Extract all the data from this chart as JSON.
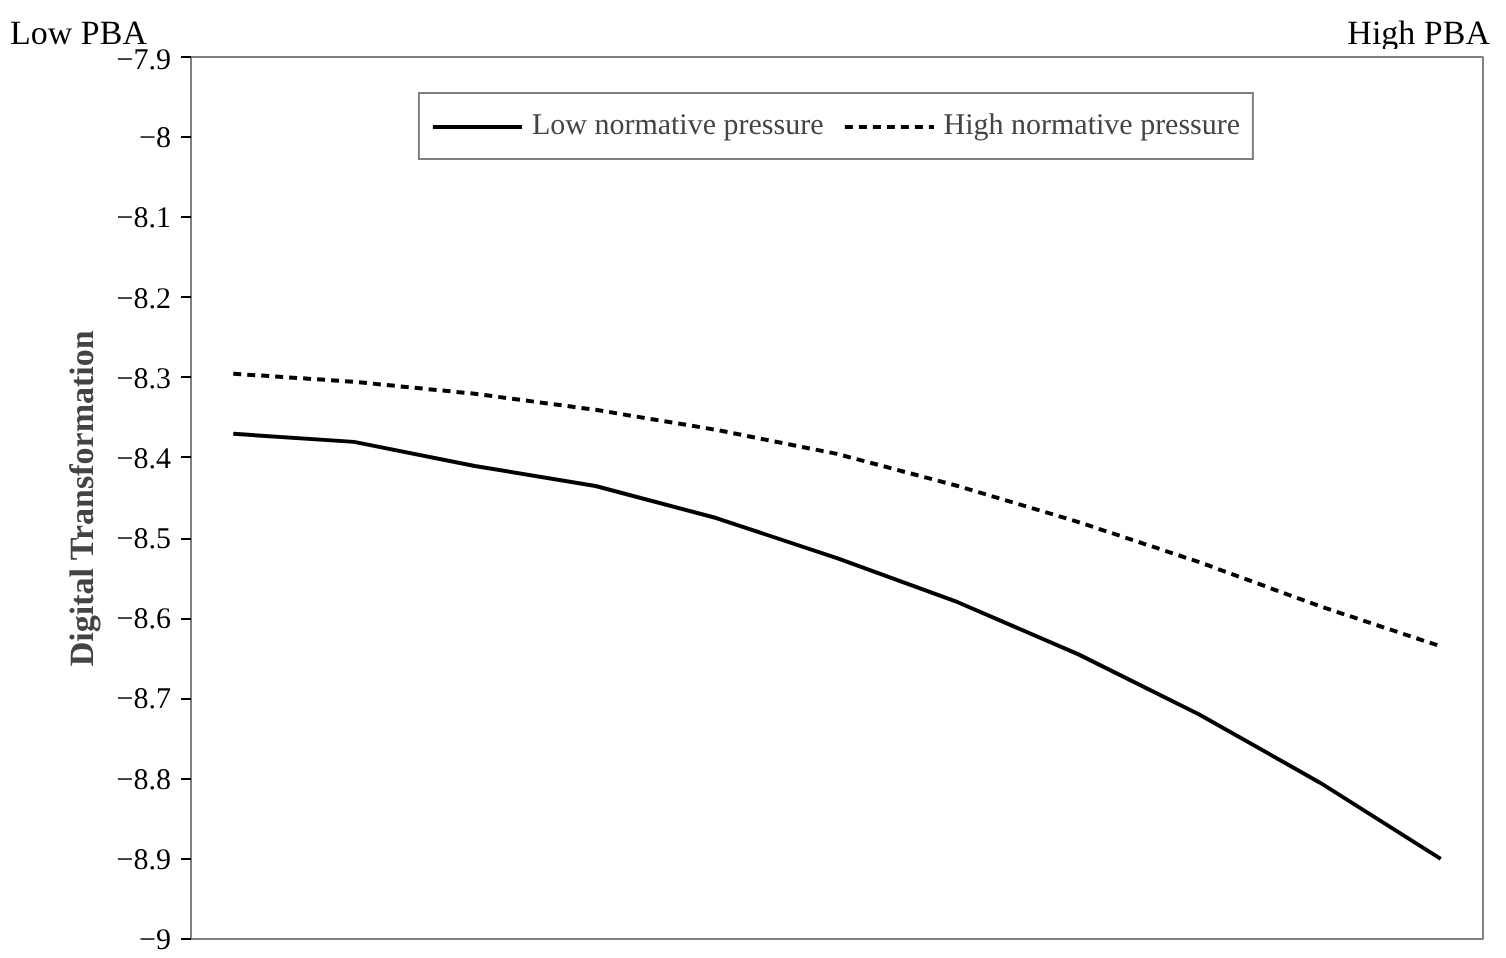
{
  "chart_data": {
    "type": "line",
    "ylabel": "Digital Transformation",
    "annotations": [
      "Low PBA",
      "High PBA"
    ],
    "categories": [
      null,
      null,
      null,
      null,
      null,
      null,
      null,
      null,
      null,
      null,
      null
    ],
    "series": [
      {
        "name": "Low normative pressure",
        "color": "#000000",
        "line_style": "solid",
        "values": [
          -8.37,
          -8.38,
          -8.41,
          -8.435,
          -8.475,
          -8.525,
          -8.58,
          -8.645,
          -8.72,
          -8.805,
          -8.9
        ]
      },
      {
        "name": "High normative pressure",
        "color": "#000000",
        "line_style": "dashed",
        "values": [
          -8.295,
          -8.305,
          -8.32,
          -8.34,
          -8.365,
          -8.395,
          -8.435,
          -8.48,
          -8.53,
          -8.585,
          -8.635
        ]
      }
    ],
    "ylim": [
      -9,
      -7.9
    ],
    "yticks": [
      {
        "value": -9,
        "label": "−9"
      },
      {
        "value": -8.9,
        "label": "−8.9"
      },
      {
        "value": -8.8,
        "label": "−8.8"
      },
      {
        "value": -8.7,
        "label": "−8.7"
      },
      {
        "value": -8.6,
        "label": "−8.6"
      },
      {
        "value": -8.5,
        "label": "−8.5"
      },
      {
        "value": -8.4,
        "label": "−8.4"
      },
      {
        "value": -8.3,
        "label": "−8.3"
      },
      {
        "value": -8.2,
        "label": "−8.2"
      },
      {
        "value": -8.1,
        "label": "−8.1"
      },
      {
        "value": -8,
        "label": "−8"
      },
      {
        "value": -7.9,
        "label": "−7.9"
      }
    ],
    "grid": false,
    "legend": "top",
    "marker": "none"
  }
}
